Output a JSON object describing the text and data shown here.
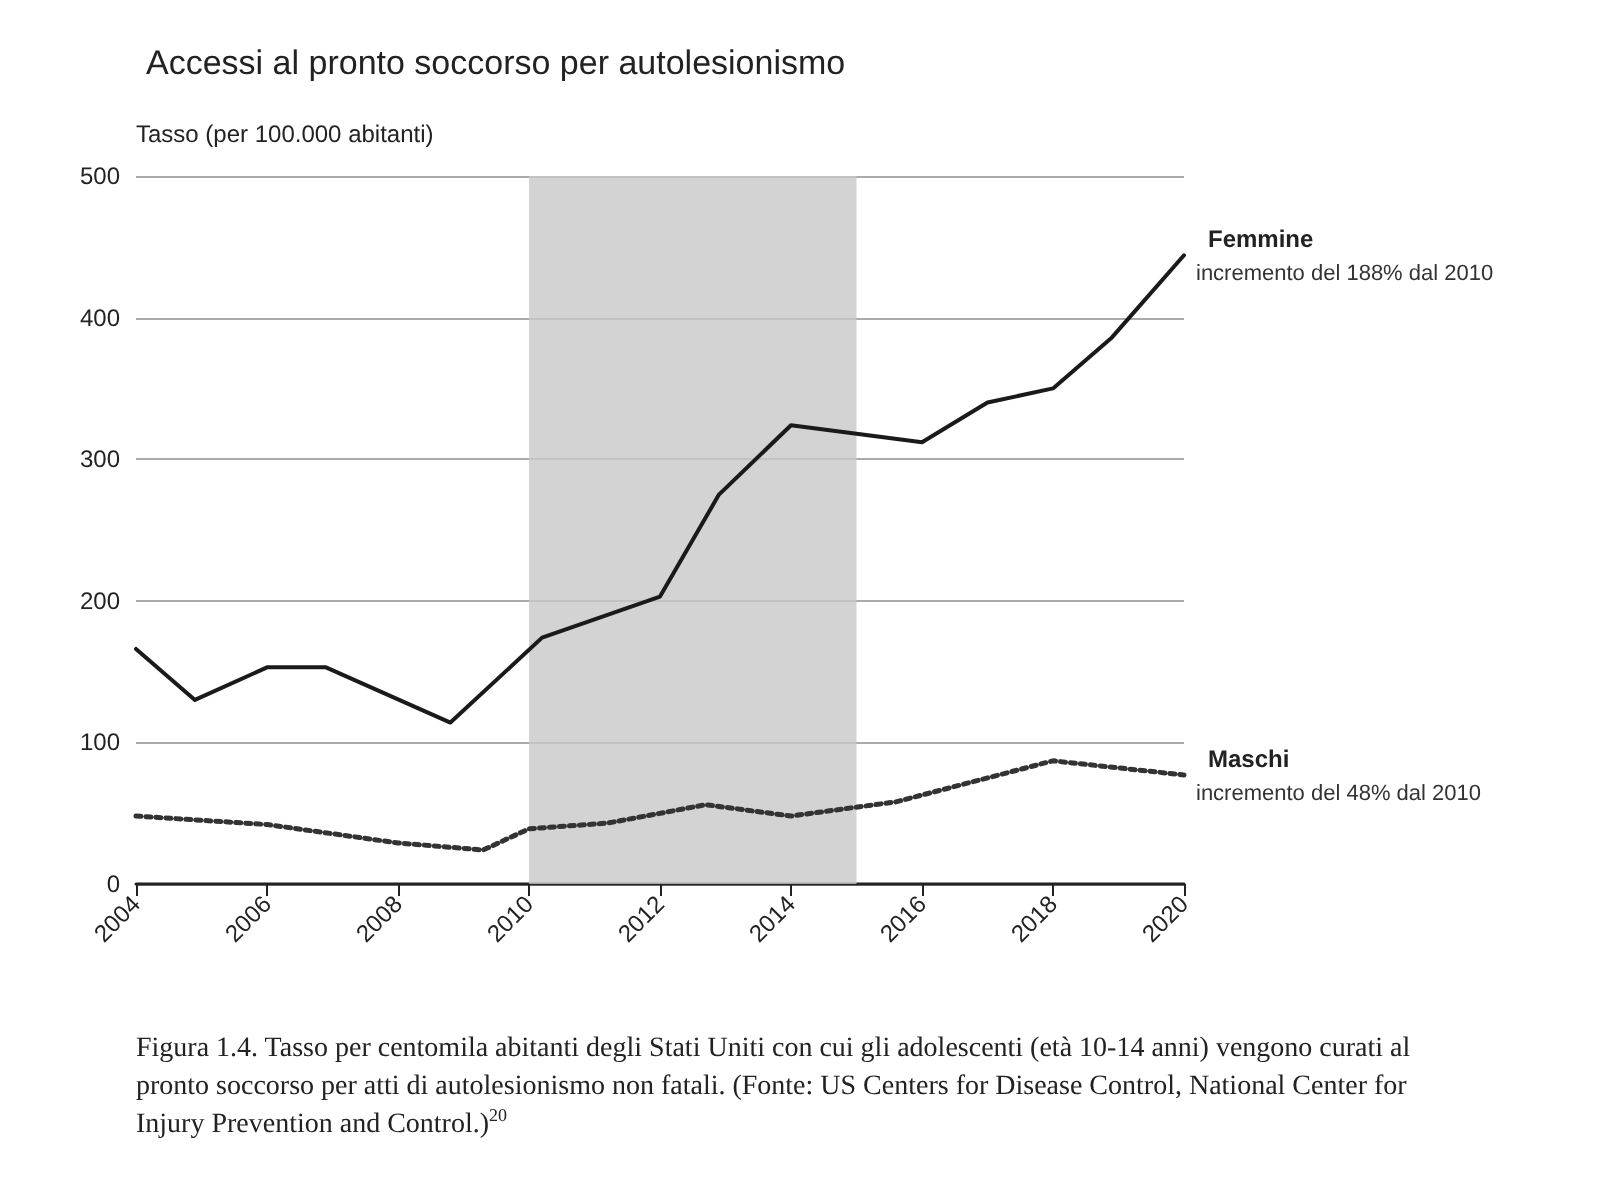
{
  "chart_data": {
    "type": "line",
    "title": "Accessi al pronto soccorso per autolesionismo",
    "ylabel": "Tasso (per 100.000 abitanti)",
    "xlim": [
      2004,
      2020
    ],
    "xticks": [
      2004,
      2006,
      2008,
      2010,
      2012,
      2014,
      2016,
      2018,
      2020
    ],
    "ylim": [
      0,
      500
    ],
    "yticks": [
      0,
      100,
      200,
      300,
      400,
      500
    ],
    "grid": "y",
    "legend": false,
    "marker": "none",
    "series": [
      {
        "name": "Femmine",
        "color": "#1a1a1a",
        "line_style": "solid",
        "x": [
          2004,
          2004.9,
          2006,
          2006.9,
          2008.8,
          2010.2,
          2012,
          2012.9,
          2014,
          2016,
          2017,
          2018,
          2018.9,
          2020
        ],
        "values": [
          166,
          130,
          153,
          153,
          114,
          174,
          203,
          275,
          324,
          312,
          340,
          350,
          386,
          444
        ]
      },
      {
        "name": "Maschi",
        "color": "#333333",
        "line_style": "dotted",
        "x": [
          2004,
          2006,
          2008,
          2009.3,
          2010,
          2011.2,
          2012.7,
          2014,
          2015.6,
          2018,
          2020
        ],
        "values": [
          48,
          42,
          29,
          24,
          39,
          43,
          56,
          48,
          58,
          87,
          77
        ]
      }
    ],
    "bands": [
      {
        "axis": "x",
        "from": 2010,
        "to": 2015,
        "color": "#c8c8c8"
      }
    ],
    "annotations": [
      {
        "text": "incremento del 188% dal 2010",
        "x": 2020,
        "y": 444
      },
      {
        "text": "incremento del 48% dal 2010",
        "x": 2020,
        "y": 77
      },
      "Figura 1.4. Tasso per centomila abitanti degli Stati Uniti con cui gli adolescenti (età 10-14 anni) vengono curati al pronto soccorso per atti di autolesionismo non fatali. (Fonte: US Centers for Disease Control, National Center for Injury Prevention and Control.)$^{20}$"
    ]
  }
}
